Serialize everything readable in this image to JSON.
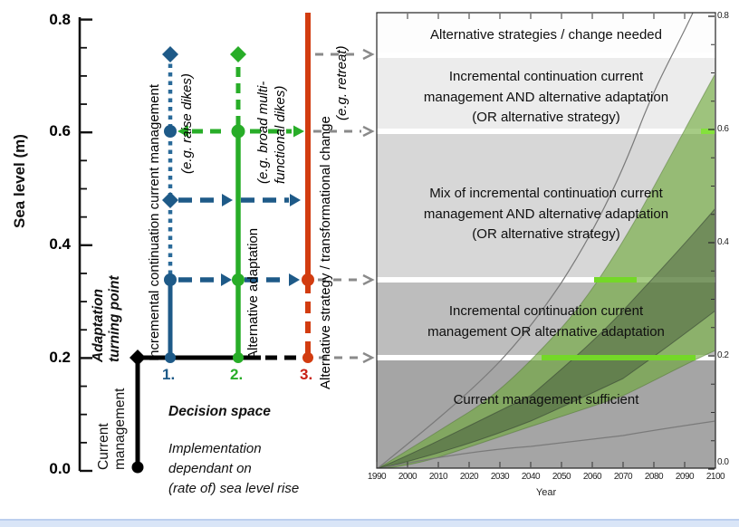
{
  "figure": {
    "left_panel": {
      "y_axis_label": "Sea level (m)",
      "y_ticks": [
        "0.8",
        "0.6",
        "0.4",
        "0.2",
        "0.0"
      ],
      "current_management": {
        "line1": "Current",
        "line2": "management"
      },
      "turning_point": {
        "line1": "Adaptation",
        "line2": "turning point"
      },
      "pathways": [
        {
          "number": "1.",
          "label": "Incremental continuation current management",
          "example": "(e.g. raise dikes)",
          "color": "#1e5a88"
        },
        {
          "number": "2.",
          "label": "Alternative adaptation",
          "example_line1": "(e.g. broad multi-",
          "example_line2": "functional dikes)",
          "color": "#28ad28"
        },
        {
          "number": "3.",
          "label": "Alternative strategy / transformational change",
          "example": "(e.g. retreat)",
          "color": "#d23c10"
        }
      ],
      "decision_space": {
        "title": "Decision space",
        "line1": "Implementation",
        "line2": "dependant on",
        "line3": "(rate of) sea level rise"
      }
    },
    "right_panel": {
      "bands": [
        {
          "name": "alternative-needed",
          "lines": [
            "Alternative strategies / change needed"
          ]
        },
        {
          "name": "incremental-and-alternative",
          "lines": [
            "Incremental continuation current",
            "management AND alternative adaptation",
            "(OR alternative strategy)"
          ]
        },
        {
          "name": "mix-incremental-and-alternative",
          "lines": [
            "Mix of incremental continuation current",
            "management AND alternative adaptation",
            "(OR alternative strategy)"
          ]
        },
        {
          "name": "incremental-or-alternative",
          "lines": [
            "Incremental continuation current",
            "management OR alternative adaptation"
          ]
        },
        {
          "name": "current-sufficient",
          "lines": [
            "Current management sufficient"
          ]
        }
      ],
      "x_axis_label": "Year",
      "x_ticks": [
        "1990",
        "2000",
        "2010",
        "2020",
        "2030",
        "2040",
        "2050",
        "2060",
        "2070",
        "2080",
        "2090",
        "2100"
      ],
      "y_ticks_right": [
        "0.8",
        "0.6",
        "0.4",
        "0.2",
        "0.0"
      ]
    },
    "colors": {
      "pathway1_blue": "#1e5a88",
      "pathway2_green": "#28ad28",
      "pathway3_red": "#d23c10",
      "gray_arrow": "#8a8a8a",
      "bright_green_strip": "#74d828"
    },
    "chart_data": {
      "type": "area",
      "xlabel": "Year",
      "x_range": [
        1990,
        2100
      ],
      "ylabel": "Sea level (m)",
      "ylim": [
        0.0,
        0.8
      ],
      "x_ticks": [
        1990,
        2000,
        2010,
        2020,
        2030,
        2040,
        2050,
        2060,
        2070,
        2080,
        2090,
        2100
      ],
      "adaptation_turning_points_m": [
        0.2,
        0.335,
        0.48,
        0.6,
        0.73
      ],
      "band_thresholds_m": [
        0.2,
        0.335,
        0.6,
        0.73
      ],
      "series": [
        {
          "name": "scenario-envelope-upper",
          "x": [
            1990,
            2030,
            2050,
            2075,
            2092
          ],
          "y": [
            0,
            0.19,
            0.33,
            0.6,
            0.8
          ]
        },
        {
          "name": "scenario-envelope-lower",
          "x": [
            1990,
            2040,
            2070,
            2100
          ],
          "y": [
            0,
            0.04,
            0.06,
            0.085
          ]
        },
        {
          "name": "green-range-upper",
          "x": [
            1990,
            2020,
            2050,
            2075,
            2100
          ],
          "y": [
            0,
            0.1,
            0.25,
            0.45,
            0.7
          ]
        },
        {
          "name": "green-range-lower",
          "x": [
            1990,
            2010,
            2040,
            2070,
            2100
          ],
          "y": [
            0,
            0.02,
            0.075,
            0.13,
            0.21
          ]
        },
        {
          "name": "central-range-upper",
          "x": [
            1990,
            2040,
            2070,
            2100
          ],
          "y": [
            0,
            0.13,
            0.28,
            0.46
          ]
        },
        {
          "name": "central-range-lower",
          "x": [
            1990,
            2040,
            2070,
            2100
          ],
          "y": [
            0,
            0.085,
            0.16,
            0.28
          ]
        }
      ]
    }
  }
}
